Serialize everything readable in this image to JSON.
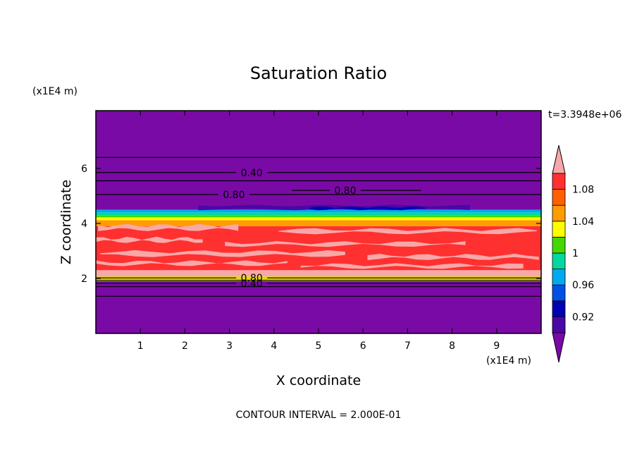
{
  "chart_data": {
    "type": "heatmap",
    "title": "Saturation Ratio",
    "xlabel": "X coordinate",
    "ylabel": "Z coordinate",
    "x_unit": "(x1E4 m)",
    "y_unit": "(x1E4 m)",
    "xlim": [
      0,
      10
    ],
    "ylim": [
      0,
      8.1
    ],
    "x_ticks": [
      1,
      2,
      3,
      4,
      5,
      6,
      7,
      8,
      9
    ],
    "y_ticks": [
      2,
      4,
      6
    ],
    "time_label": "t=3.3948e+06",
    "footer": "CONTOUR INTERVAL = 2.000E-01",
    "colorbar": {
      "labels": [
        "1.08",
        "1.04",
        "1",
        "0.96",
        "0.92"
      ],
      "levels": [
        0.9,
        0.92,
        0.94,
        0.96,
        0.98,
        1.0,
        1.02,
        1.04,
        1.06,
        1.08,
        1.1
      ],
      "colors": [
        "#7a0aa6",
        "#4a08a6",
        "#0000b4",
        "#0050e6",
        "#00aaf0",
        "#00d8a0",
        "#44d800",
        "#ffff00",
        "#ff9c00",
        "#ff6000",
        "#ff3030",
        "#f8a8a8"
      ]
    },
    "bands": [
      {
        "z0": 0.0,
        "z1": 1.9,
        "value": 0.5,
        "color": "#7a0aa6"
      },
      {
        "z0": 1.9,
        "z1": 2.07,
        "value": 1.0,
        "color": "#e4d800"
      },
      {
        "z0": 2.07,
        "z1": 2.3,
        "value": 1.1,
        "color": "#f8a8a8"
      },
      {
        "z0": 2.3,
        "z1": 3.9,
        "value": 1.09,
        "color": "#ff3030"
      },
      {
        "z0": 3.9,
        "z1": 4.12,
        "value": 1.06,
        "color": "#ff9c00"
      },
      {
        "z0": 4.12,
        "z1": 4.22,
        "value": 1.03,
        "color": "#ffff00"
      },
      {
        "z0": 4.22,
        "z1": 4.3,
        "value": 1.01,
        "color": "#44d800"
      },
      {
        "z0": 4.3,
        "z1": 4.4,
        "value": 0.99,
        "color": "#00d8a0"
      },
      {
        "z0": 4.4,
        "z1": 4.5,
        "value": 0.97,
        "color": "#00aaf0"
      },
      {
        "z0": 4.5,
        "z1": 8.1,
        "value": 0.5,
        "color": "#7a0aa6"
      }
    ],
    "pink_streaks": [
      {
        "x0": 0.05,
        "x1": 3.2,
        "z": 3.85,
        "h": 0.15
      },
      {
        "x0": 4.1,
        "x1": 9.9,
        "z": 3.72,
        "h": 0.12
      },
      {
        "x0": 0.0,
        "x1": 2.4,
        "z": 3.4,
        "h": 0.12
      },
      {
        "x0": 2.9,
        "x1": 8.3,
        "z": 3.25,
        "h": 0.1
      },
      {
        "x0": 0.1,
        "x1": 5.6,
        "z": 2.9,
        "h": 0.14
      },
      {
        "x0": 6.1,
        "x1": 9.95,
        "z": 2.78,
        "h": 0.12
      },
      {
        "x0": 0.0,
        "x1": 4.3,
        "z": 2.55,
        "h": 0.1
      },
      {
        "x0": 4.6,
        "x1": 9.6,
        "z": 2.45,
        "h": 0.1
      }
    ],
    "dark_blobs": [
      {
        "x0": 2.3,
        "x1": 8.4,
        "z": 4.58,
        "h": 0.14,
        "color": "#4a08a6"
      },
      {
        "x0": 4.8,
        "x1": 7.4,
        "z": 4.55,
        "h": 0.08,
        "color": "#0000b4"
      }
    ],
    "contours": [
      {
        "z": 6.4,
        "label": ""
      },
      {
        "z": 5.85,
        "label": "0.40",
        "label_x": 3.5
      },
      {
        "z": 5.55,
        "label": ""
      },
      {
        "z": 5.05,
        "label": "0.80",
        "label_x": 3.1
      },
      {
        "z": 5.2,
        "label": "0.80",
        "label_x": 5.6,
        "x0": 4.4,
        "x1": 7.3
      },
      {
        "z": 2.02,
        "label": "0.80",
        "label_x": 3.5
      },
      {
        "z": 1.93,
        "label": ""
      },
      {
        "z": 1.82,
        "label": "0.40",
        "label_x": 3.5
      },
      {
        "z": 1.7,
        "label": ""
      },
      {
        "z": 1.35,
        "label": ""
      }
    ]
  }
}
